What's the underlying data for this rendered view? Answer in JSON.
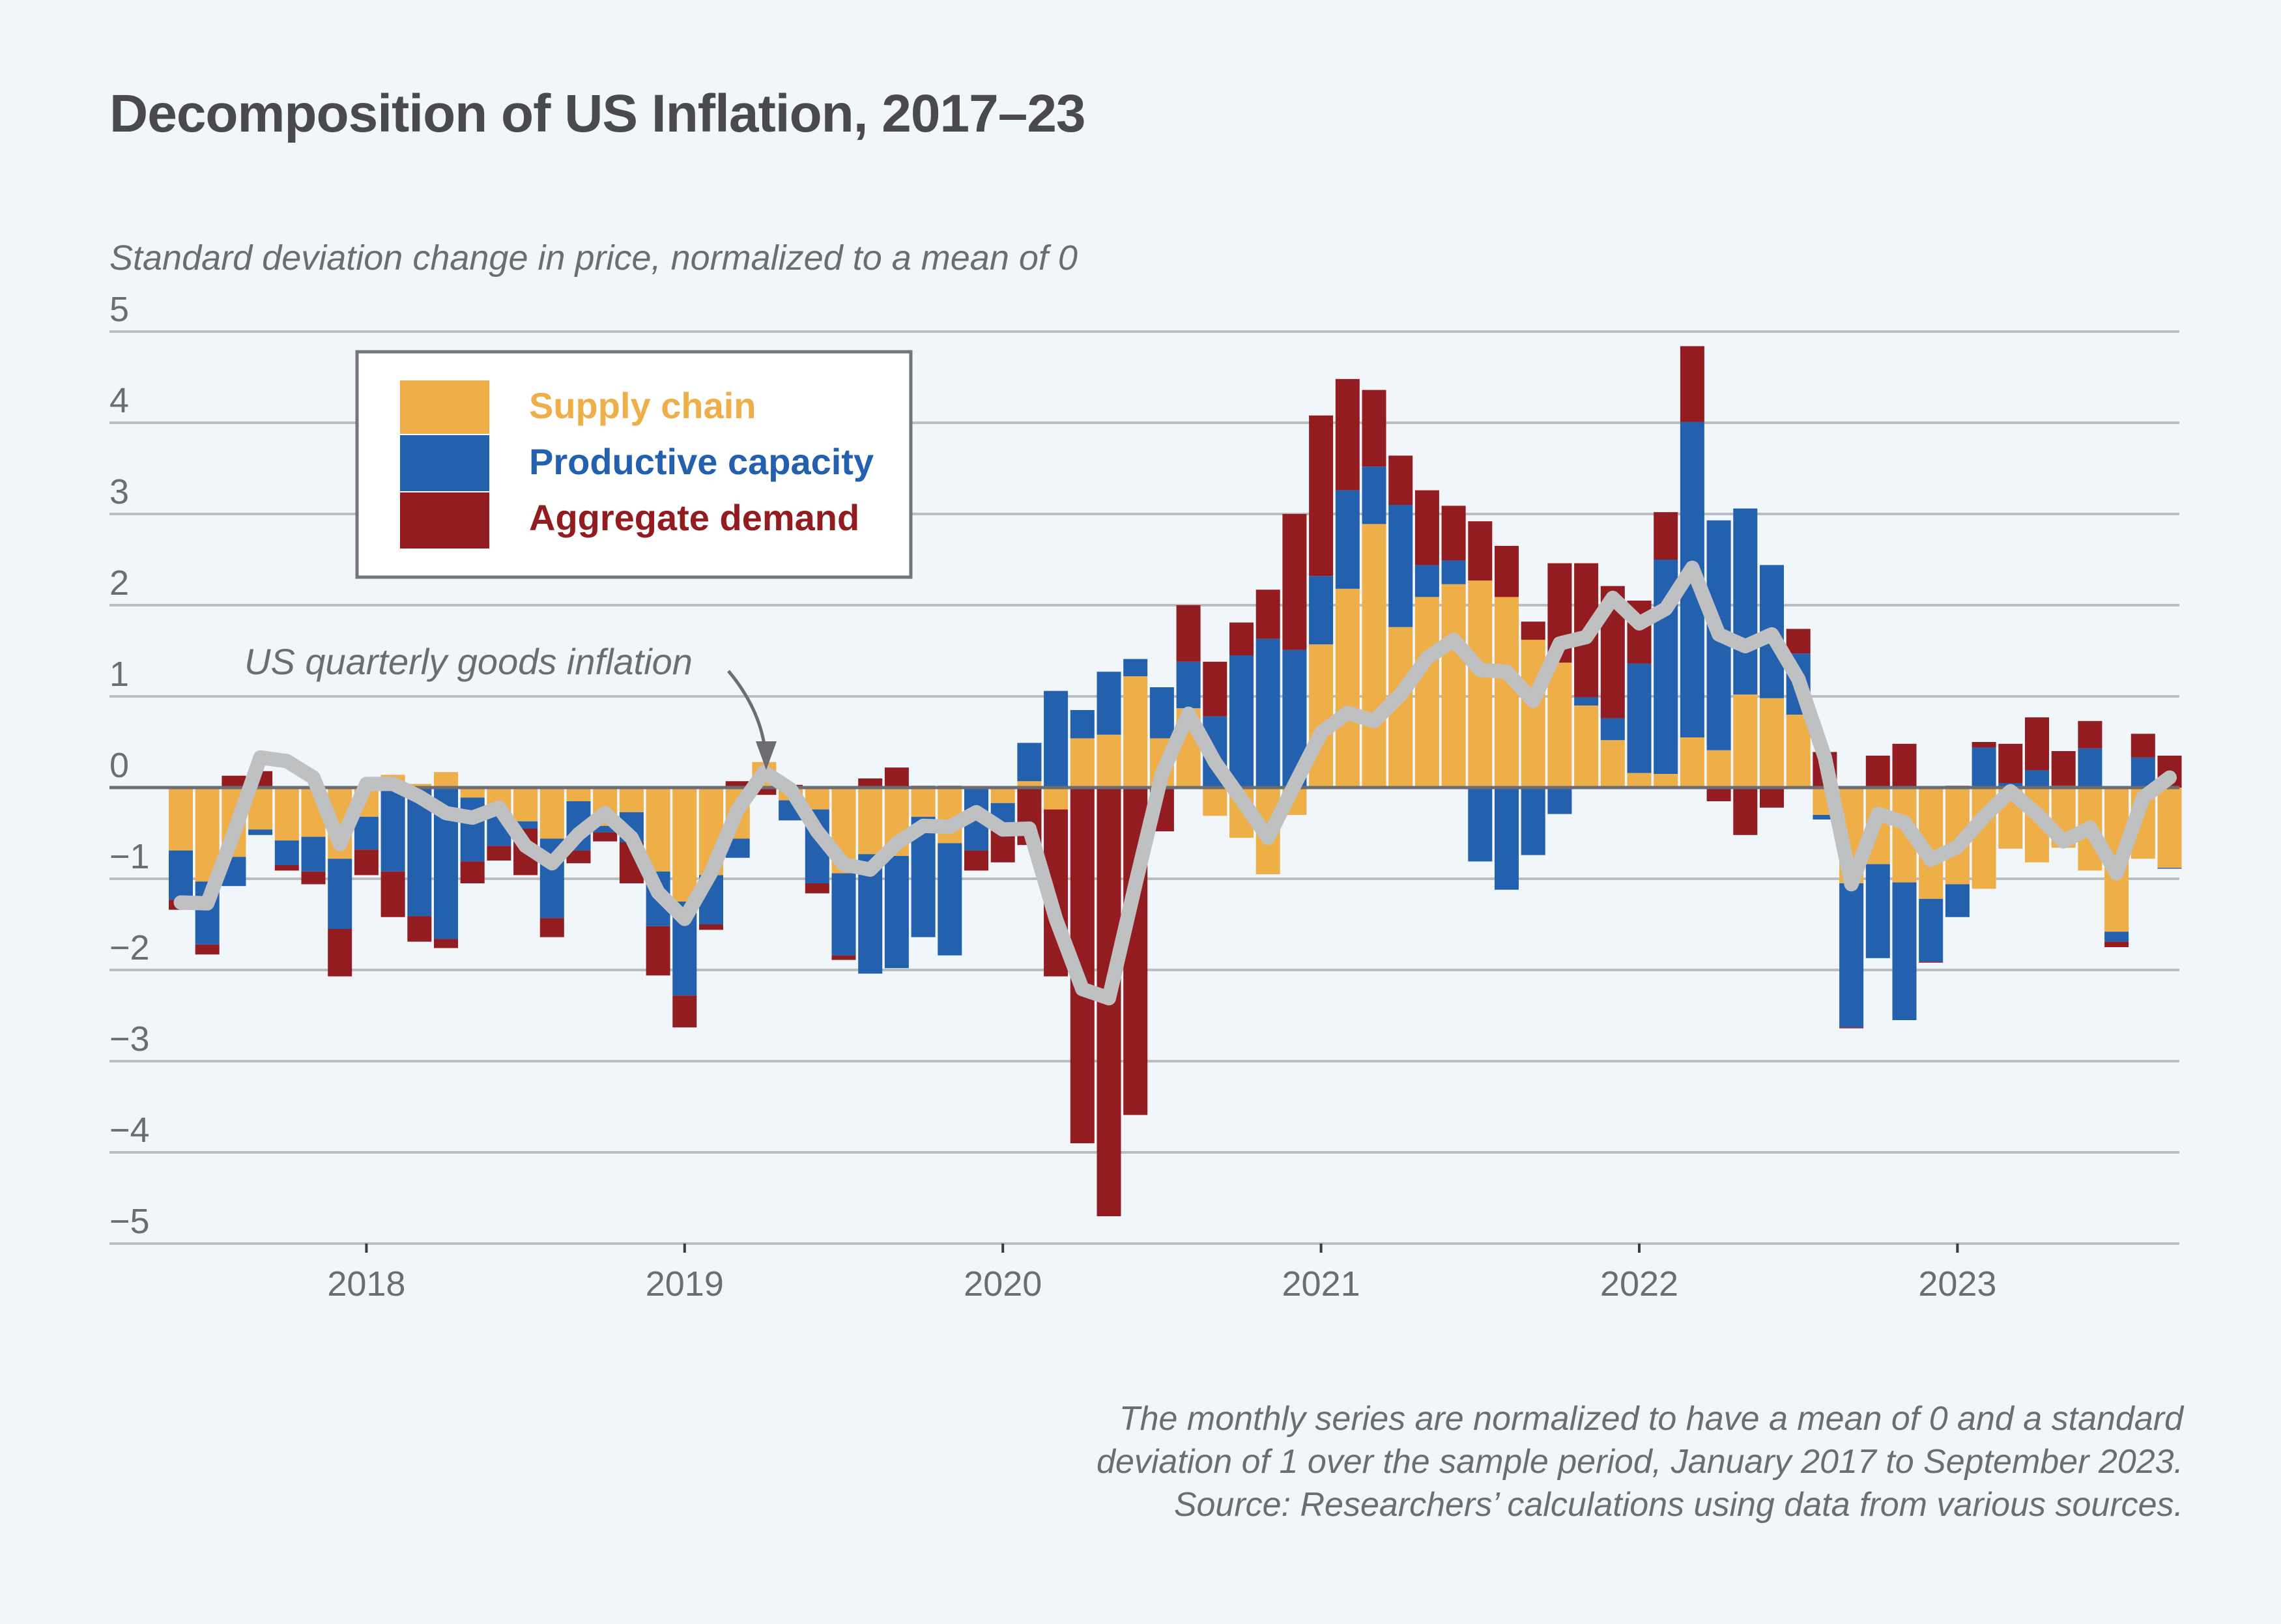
{
  "title": "Decomposition of US Inflation, 2017–23",
  "subtitle": "Standard deviation change in price, normalized to a mean of 0",
  "footnote": [
    "The monthly series are normalized to have a mean of 0 and a standard",
    "deviation of 1 over the sample period, January 2017 to September 2023.",
    "Source: Researchers’ calculations using data from various sources."
  ],
  "colors": {
    "supply_chain": "#eeae48",
    "productive_capacity": "#2360ad",
    "aggregate_demand": "#931c21",
    "line": "#bfc0c2",
    "background": "#f1f6fa",
    "grid": "#bcbdc0",
    "zero_line": "#6c6d72",
    "text": "#6c6d72"
  },
  "legend": {
    "items": [
      {
        "key": "supply_chain",
        "label": "Supply chain",
        "color": "#eeae48"
      },
      {
        "key": "productive_capacity",
        "label": "Productive capacity",
        "color": "#2360ad"
      },
      {
        "key": "aggregate_demand",
        "label": "Aggregate demand",
        "color": "#931c21"
      }
    ]
  },
  "annotation": {
    "label": "US quarterly goods inflation",
    "points_to": "2019-04"
  },
  "chart_data": {
    "type": "bar",
    "stacked": true,
    "title": "Decomposition of US Inflation, 2017–23",
    "ylabel": "Standard deviation change in price, normalized to a mean of 0",
    "xlabel": "",
    "ylim": [
      -5,
      5
    ],
    "yticks": [
      5,
      4,
      3,
      2,
      1,
      0,
      -1,
      -2,
      -3,
      -4,
      -5
    ],
    "ytick_labels": [
      "5",
      "4",
      "3",
      "2",
      "1",
      "0",
      "−1",
      "−2",
      "−3",
      "−4",
      "−5"
    ],
    "xticks": [
      {
        "label": "2018",
        "month": "2018-01"
      },
      {
        "label": "2019",
        "month": "2019-01"
      },
      {
        "label": "2020",
        "month": "2020-01"
      },
      {
        "label": "2021",
        "month": "2021-01"
      },
      {
        "label": "2022",
        "month": "2022-01"
      },
      {
        "label": "2023",
        "month": "2023-01"
      }
    ],
    "grid": true,
    "legend_position": "top-left",
    "categories": [
      "2017-06",
      "2017-07",
      "2017-08",
      "2017-09",
      "2017-10",
      "2017-11",
      "2017-12",
      "2018-01",
      "2018-02",
      "2018-03",
      "2018-04",
      "2018-05",
      "2018-06",
      "2018-07",
      "2018-08",
      "2018-09",
      "2018-10",
      "2018-11",
      "2018-12",
      "2019-01",
      "2019-02",
      "2019-03",
      "2019-04",
      "2019-05",
      "2019-06",
      "2019-07",
      "2019-08",
      "2019-09",
      "2019-10",
      "2019-11",
      "2019-12",
      "2020-01",
      "2020-02",
      "2020-03",
      "2020-04",
      "2020-05",
      "2020-06",
      "2020-07",
      "2020-08",
      "2020-09",
      "2020-10",
      "2020-11",
      "2020-12",
      "2021-01",
      "2021-02",
      "2021-03",
      "2021-04",
      "2021-05",
      "2021-06",
      "2021-07",
      "2021-08",
      "2021-09",
      "2021-10",
      "2021-11",
      "2021-12",
      "2022-01",
      "2022-02",
      "2022-03",
      "2022-04",
      "2022-05",
      "2022-06",
      "2022-07",
      "2022-08",
      "2022-09",
      "2022-10",
      "2022-11",
      "2022-12",
      "2023-01",
      "2023-02",
      "2023-03",
      "2023-04",
      "2023-05",
      "2023-06",
      "2023-07",
      "2023-08",
      "2023-09"
    ],
    "series": [
      {
        "name": "Supply chain",
        "key": "supply_chain",
        "values": [
          -0.69,
          -1.03,
          -0.76,
          -0.46,
          -0.58,
          -0.54,
          -0.78,
          -0.32,
          0.14,
          0.04,
          0.17,
          -0.11,
          -0.3,
          -0.37,
          -0.56,
          -0.15,
          -0.42,
          -0.27,
          -0.92,
          -1.25,
          -0.96,
          -0.56,
          0.28,
          -0.14,
          -0.24,
          -0.94,
          -0.73,
          -0.75,
          -0.32,
          -0.61,
          0.0,
          -0.17,
          0.07,
          -0.24,
          0.54,
          0.58,
          1.22,
          0.54,
          0.87,
          -0.31,
          -0.55,
          -0.95,
          -0.3,
          1.57,
          2.18,
          2.89,
          1.76,
          2.09,
          2.23,
          2.27,
          2.09,
          1.62,
          1.37,
          0.9,
          0.52,
          0.16,
          0.15,
          0.55,
          0.41,
          1.02,
          0.98,
          0.8,
          -0.3,
          -1.05,
          -0.84,
          -1.04,
          -1.22,
          -1.06,
          -1.11,
          -0.67,
          -0.82,
          -0.66,
          -0.91,
          -1.58,
          -0.78,
          -0.88
        ]
      },
      {
        "name": "Productive capacity",
        "key": "productive_capacity",
        "values": [
          -0.54,
          -0.69,
          -0.32,
          -0.06,
          -0.27,
          -0.38,
          -0.77,
          -0.36,
          -0.92,
          -1.41,
          -1.66,
          -0.7,
          -0.34,
          -0.08,
          -0.87,
          -0.54,
          -0.07,
          -0.33,
          -0.6,
          -1.03,
          -0.54,
          -0.21,
          0.0,
          -0.22,
          -0.81,
          -0.9,
          -1.31,
          -1.23,
          -1.32,
          -1.23,
          -0.69,
          -0.3,
          0.42,
          1.06,
          0.31,
          0.69,
          0.19,
          0.56,
          0.51,
          0.78,
          1.45,
          1.63,
          1.51,
          0.75,
          1.08,
          0.63,
          1.34,
          0.35,
          0.26,
          -0.81,
          -1.12,
          -0.74,
          -0.29,
          0.09,
          0.24,
          1.2,
          2.35,
          3.46,
          2.52,
          2.04,
          1.46,
          0.67,
          -0.05,
          -1.58,
          -1.03,
          -1.51,
          -0.69,
          -0.36,
          0.44,
          0.05,
          0.19,
          0.02,
          0.43,
          -0.11,
          0.33,
          -0.01
        ]
      },
      {
        "name": "Aggregate demand",
        "key": "aggregate_demand",
        "values": [
          -0.11,
          -0.11,
          0.13,
          0.18,
          -0.06,
          -0.14,
          -0.52,
          -0.28,
          -0.5,
          -0.28,
          -0.1,
          -0.24,
          -0.16,
          -0.51,
          -0.21,
          -0.14,
          -0.1,
          -0.45,
          -0.54,
          -0.35,
          -0.06,
          0.07,
          -0.08,
          0.03,
          -0.11,
          -0.05,
          0.1,
          0.22,
          0.02,
          0.02,
          -0.22,
          -0.35,
          -0.63,
          -1.83,
          -3.9,
          -4.7,
          -3.59,
          -0.48,
          0.62,
          0.6,
          0.36,
          0.54,
          1.49,
          1.76,
          1.22,
          0.84,
          0.54,
          0.82,
          0.6,
          0.65,
          0.56,
          0.2,
          1.09,
          1.47,
          1.45,
          0.69,
          0.52,
          0.83,
          -0.15,
          -0.52,
          -0.22,
          0.27,
          0.39,
          -0.01,
          0.35,
          0.48,
          -0.01,
          0.02,
          0.06,
          0.43,
          0.58,
          0.38,
          0.3,
          -0.06,
          0.26,
          0.35
        ]
      }
    ],
    "line_series": {
      "name": "US quarterly goods inflation",
      "values": [
        -1.26,
        -1.27,
        -0.5,
        0.33,
        0.29,
        0.11,
        -0.62,
        0.04,
        0.04,
        -0.1,
        -0.28,
        -0.33,
        -0.22,
        -0.64,
        -0.83,
        -0.51,
        -0.28,
        -0.55,
        -1.15,
        -1.44,
        -0.93,
        -0.24,
        0.17,
        -0.02,
        -0.48,
        -0.84,
        -0.9,
        -0.61,
        -0.42,
        -0.43,
        -0.27,
        -0.46,
        -0.45,
        -1.44,
        -2.21,
        -2.31,
        -1.06,
        0.15,
        0.81,
        0.28,
        -0.13,
        -0.55,
        0.03,
        0.6,
        0.82,
        0.73,
        1.02,
        1.42,
        1.62,
        1.29,
        1.27,
        0.95,
        1.58,
        1.65,
        2.08,
        1.8,
        1.96,
        2.41,
        1.68,
        1.55,
        1.68,
        1.19,
        0.33,
        -1.06,
        -0.29,
        -0.38,
        -0.79,
        -0.65,
        -0.32,
        -0.04,
        -0.29,
        -0.59,
        -0.44,
        -0.94,
        -0.11,
        0.11
      ]
    }
  }
}
